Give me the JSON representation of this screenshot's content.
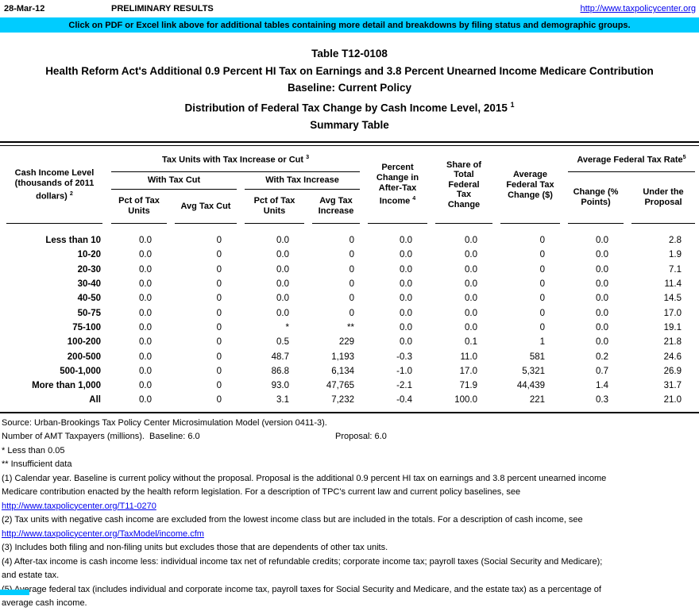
{
  "colors": {
    "banner_bg": "#00CCFF",
    "link_blue": "#0000EE",
    "text": "#000000"
  },
  "top_bar": {
    "date": "28-Mar-12",
    "status": "PRELIMINARY RESULTS",
    "site_link": "http://www.taxpolicycenter.org"
  },
  "banner": {
    "text": "Click on PDF or Excel link above for additional tables containing more detail and breakdowns by filing status and demographic groups."
  },
  "titles": {
    "line1": "Table T12-0108",
    "line2": "Health Reform Act's Additional 0.9 Percent HI Tax on Earnings and 3.8 Percent Unearned Income Medicare Contribution",
    "line3": "Baseline: Current Policy",
    "line4": "Distribution of Federal Tax Change by Cash Income Level, 2015 ",
    "line4_sup": "1",
    "line5": "Summary Table"
  },
  "table": {
    "row_header": {
      "text": "Cash Income Level\n(thousands of 2011\ndollars) ",
      "sup": "2"
    },
    "group_tax_units": {
      "text": "Tax Units with Tax Increase or Cut ",
      "sup": "3"
    },
    "group_with_cut": "With Tax Cut",
    "group_with_increase": "With Tax Increase",
    "col_pct_cut": "Pct of Tax\nUnits",
    "col_avg_cut": "Avg Tax Cut",
    "col_pct_inc": "Pct of Tax\nUnits",
    "col_avg_inc": "Avg Tax\nIncrease",
    "col_pct_change": {
      "text": "Percent\nChange in\nAfter-Tax\nIncome ",
      "sup": "4"
    },
    "col_share": "Share of\nTotal\nFederal\nTax\nChange",
    "col_avg_change": "Average\nFederal Tax\nChange ($)",
    "group_avg_rate": {
      "text": "Average Federal Tax Rate",
      "sup": "5"
    },
    "col_rate_change": "Change (%\nPoints)",
    "col_rate_under": "Under the\nProposal",
    "rows": [
      {
        "label": "Less than 10",
        "cells": [
          "0.0",
          "0",
          "0.0",
          "0",
          "0.0",
          "0.0",
          "0",
          "0.0",
          "2.8"
        ]
      },
      {
        "label": "10-20",
        "cells": [
          "0.0",
          "0",
          "0.0",
          "0",
          "0.0",
          "0.0",
          "0",
          "0.0",
          "1.9"
        ]
      },
      {
        "label": "20-30",
        "cells": [
          "0.0",
          "0",
          "0.0",
          "0",
          "0.0",
          "0.0",
          "0",
          "0.0",
          "7.1"
        ]
      },
      {
        "label": "30-40",
        "cells": [
          "0.0",
          "0",
          "0.0",
          "0",
          "0.0",
          "0.0",
          "0",
          "0.0",
          "11.4"
        ]
      },
      {
        "label": "40-50",
        "cells": [
          "0.0",
          "0",
          "0.0",
          "0",
          "0.0",
          "0.0",
          "0",
          "0.0",
          "14.5"
        ]
      },
      {
        "label": "50-75",
        "cells": [
          "0.0",
          "0",
          "0.0",
          "0",
          "0.0",
          "0.0",
          "0",
          "0.0",
          "17.0"
        ]
      },
      {
        "label": "75-100",
        "cells": [
          "0.0",
          "0",
          "*",
          "**",
          "0.0",
          "0.0",
          "0",
          "0.0",
          "19.1"
        ]
      },
      {
        "label": "100-200",
        "cells": [
          "0.0",
          "0",
          "0.5",
          "229",
          "0.0",
          "0.1",
          "1",
          "0.0",
          "21.8"
        ]
      },
      {
        "label": "200-500",
        "cells": [
          "0.0",
          "0",
          "48.7",
          "1,193",
          "-0.3",
          "11.0",
          "581",
          "0.2",
          "24.6"
        ]
      },
      {
        "label": "500-1,000",
        "cells": [
          "0.0",
          "0",
          "86.8",
          "6,134",
          "-1.0",
          "17.0",
          "5,321",
          "0.7",
          "26.9"
        ]
      },
      {
        "label": "More than 1,000",
        "cells": [
          "0.0",
          "0",
          "93.0",
          "47,765",
          "-2.1",
          "71.9",
          "44,439",
          "1.4",
          "31.7"
        ]
      },
      {
        "label": "All",
        "cells": [
          "0.0",
          "0",
          "3.1",
          "7,232",
          "-0.4",
          "100.0",
          "221",
          "0.3",
          "21.0"
        ]
      }
    ]
  },
  "footer": {
    "lines": [
      {
        "type": "text",
        "text": "Source: Urban-Brookings Tax Policy Center Microsimulation Model (version 0411-3)."
      },
      {
        "type": "amt",
        "left": "Number of AMT Taxpayers (millions).  Baseline: 6.0",
        "right": "Proposal: 6.0"
      },
      {
        "type": "text",
        "text": "* Less than 0.05"
      },
      {
        "type": "text",
        "text": "** Insufficient data"
      },
      {
        "type": "text",
        "text": "(1) Calendar year. Baseline is current policy without the proposal. Proposal is the additional 0.9 percent HI tax on earnings and 3.8 percent unearned income"
      },
      {
        "type": "text",
        "text": "Medicare contribution enacted by the health reform legislation. For a description of TPC's current law and current policy baselines, see"
      },
      {
        "type": "link",
        "text": "http://www.taxpolicycenter.org/T11-0270"
      },
      {
        "type": "text",
        "text": "(2) Tax units with negative cash income are excluded from the lowest income class but are included in the totals. For a description of cash income, see"
      },
      {
        "type": "link",
        "text": "http://www.taxpolicycenter.org/TaxModel/income.cfm"
      },
      {
        "type": "text",
        "text": "(3) Includes both filing and non-filing units but excludes those that are dependents of other tax units."
      },
      {
        "type": "text",
        "text": "(4) After-tax income is cash income less: individual income tax net of refundable credits; corporate income tax; payroll taxes (Social Security and Medicare);"
      },
      {
        "type": "text",
        "text": "and estate tax."
      },
      {
        "type": "text",
        "text": "(5) Average federal tax (includes individual and corporate income tax, payroll taxes for Social Security and Medicare, and the estate tax) as a percentage of"
      },
      {
        "type": "text",
        "text": "average cash income."
      }
    ]
  }
}
